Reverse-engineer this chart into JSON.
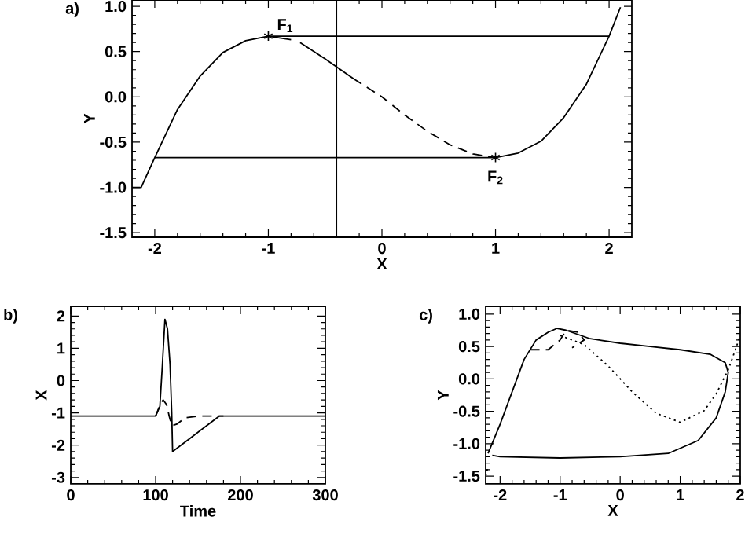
{
  "chart_data": [
    {
      "type": "line",
      "title": "a)",
      "xlabel": "X",
      "ylabel": "Y",
      "xlim": [
        -2.2,
        2.2
      ],
      "ylim": [
        -1.55,
        1.07
      ],
      "xticks": [
        -2,
        -1,
        0,
        1,
        2
      ],
      "yticks": [
        {
          "value": -1.5,
          "label": "-1.5"
        },
        {
          "value": -1.0,
          "label": "-1.0"
        },
        {
          "value": -0.5,
          "label": "-0.5"
        },
        {
          "value": 0,
          "label": "0.0"
        },
        {
          "value": 0.5,
          "label": "0.5"
        },
        {
          "value": 1.0,
          "label": "1.0"
        }
      ],
      "grid": false,
      "ref_lines": [
        {
          "axis": "x",
          "value": -0.4,
          "label": null
        }
      ],
      "annotations": [
        {
          "text": "F$_{1}$",
          "x": -1.0,
          "y": 0.67
        },
        {
          "text": "F$_{2}$",
          "x": 1.0,
          "y": -0.67
        }
      ],
      "series": [
        {
          "color": "#000000",
          "line_style": "solid",
          "marker": "none",
          "x": [
            -2.2,
            -2.12,
            -2.0,
            -1.8,
            -1.6,
            -1.4,
            -1.2,
            -1.0,
            -0.8
          ],
          "values": [
            -1.0,
            -1.0,
            -0.67,
            -0.14,
            0.23,
            0.49,
            0.62,
            0.67,
            0.63
          ]
        },
        {
          "color": "#000000",
          "line_style": "solid",
          "marker": "none",
          "x": [
            -0.72,
            -0.5,
            -0.25
          ],
          "values": [
            0.6,
            0.42,
            0.2
          ]
        },
        {
          "color": "#000000",
          "line_style": "dashed",
          "marker": "none",
          "x": [
            -0.25,
            0,
            0.2,
            0.4,
            0.6,
            0.8,
            1.0
          ],
          "values": [
            0.2,
            0,
            -0.2,
            -0.38,
            -0.53,
            -0.63,
            -0.67
          ]
        },
        {
          "color": "#000000",
          "line_style": "solid",
          "marker": "none",
          "x": [
            1.0,
            1.2,
            1.4,
            1.6,
            1.8,
            2.0,
            2.1
          ],
          "values": [
            -0.67,
            -0.62,
            -0.49,
            -0.23,
            0.14,
            0.67,
            0.99
          ]
        },
        {
          "color": "#000000",
          "line_style": "solid",
          "marker": "none",
          "x": [
            -1.0,
            2.0
          ],
          "values": [
            0.67,
            0.67
          ]
        },
        {
          "color": "#000000",
          "line_style": "solid",
          "marker": "none",
          "x": [
            -2.0,
            1.0
          ],
          "values": [
            -0.67,
            -0.67
          ]
        },
        {
          "type": "scatter",
          "color": "#000000",
          "marker": "cross",
          "x": [
            -1.0,
            1.0
          ],
          "values": [
            0.67,
            -0.67
          ]
        }
      ]
    },
    {
      "type": "line",
      "title": "b)",
      "xlabel": "Time",
      "ylabel": "X",
      "xlim": [
        0,
        300
      ],
      "ylim": [
        -3.2,
        2.3
      ],
      "xticks": [
        0,
        100,
        200,
        300
      ],
      "yticks": [
        -3,
        -2,
        -1,
        0,
        1,
        2
      ],
      "grid": false,
      "series": [
        {
          "color": "#000000",
          "line_style": "solid",
          "marker": "none",
          "x": [
            0,
            100,
            105,
            108,
            111,
            114,
            117,
            119,
            120,
            125,
            140,
            160,
            175,
            300
          ],
          "values": [
            -1.1,
            -1.1,
            -0.8,
            0.5,
            1.9,
            1.6,
            0.5,
            -1.0,
            -2.2,
            -2.1,
            -1.8,
            -1.4,
            -1.1,
            -1.1
          ]
        },
        {
          "color": "#000000",
          "line_style": "dashed",
          "marker": "none",
          "x": [
            100,
            106,
            109,
            113,
            116,
            119,
            125,
            135,
            150,
            180
          ],
          "values": [
            -1.1,
            -0.7,
            -0.6,
            -0.75,
            -1.1,
            -1.4,
            -1.35,
            -1.15,
            -1.1,
            -1.1
          ]
        }
      ]
    },
    {
      "type": "line",
      "title": "c)",
      "xlabel": "X",
      "ylabel": "Y",
      "xlim": [
        -2.24,
        2.0
      ],
      "ylim": [
        -1.62,
        1.12
      ],
      "xticks": [
        -2,
        -1,
        0,
        1,
        2
      ],
      "yticks": [
        {
          "value": -1.5,
          "label": "-1.5"
        },
        {
          "value": -1.0,
          "label": "-1.0"
        },
        {
          "value": -0.5,
          "label": "-0.5"
        },
        {
          "value": 0,
          "label": "0.0"
        },
        {
          "value": 0.5,
          "label": "0.5"
        },
        {
          "value": 1.0,
          "label": "1.0"
        }
      ],
      "grid": false,
      "series": [
        {
          "color": "#000000",
          "line_style": "solid",
          "marker": "none",
          "x": [
            -2.2,
            -2.0,
            -1.8,
            -1.6,
            -1.4,
            -1.2,
            -1.05,
            -0.9,
            -0.5,
            0,
            0.5,
            1.0,
            1.5,
            1.75,
            1.8,
            1.75,
            1.6,
            1.3,
            0.8,
            0,
            -1.0,
            -2.0,
            -2.13
          ],
          "values": [
            -1.15,
            -0.7,
            -0.2,
            0.3,
            0.6,
            0.72,
            0.78,
            0.75,
            0.62,
            0.55,
            0.5,
            0.45,
            0.38,
            0.25,
            0.1,
            -0.2,
            -0.6,
            -0.95,
            -1.15,
            -1.2,
            -1.22,
            -1.2,
            -1.18
          ]
        },
        {
          "color": "#000000",
          "line_style": "dashed",
          "marker": "none",
          "x": [
            -1.5,
            -1.2,
            -1.0,
            -0.9,
            -0.7,
            -0.6,
            -0.8
          ],
          "values": [
            0.45,
            0.45,
            0.6,
            0.75,
            0.72,
            0.6,
            0.48
          ]
        },
        {
          "color": "#000000",
          "line_style": "dotted",
          "marker": "none",
          "x": [
            -2.24,
            -2.2
          ],
          "values": [
            -1.5,
            -1.35
          ]
        },
        {
          "color": "#000000",
          "line_style": "dotted",
          "marker": "none",
          "x": [
            -1.0,
            -0.6,
            -0.2,
            0.2,
            0.6,
            1.0,
            1.4,
            1.6,
            1.8,
            1.9,
            2.0
          ],
          "values": [
            0.67,
            0.53,
            0.2,
            -0.2,
            -0.53,
            -0.67,
            -0.49,
            -0.23,
            0.14,
            0.4,
            0.67
          ]
        }
      ]
    }
  ]
}
